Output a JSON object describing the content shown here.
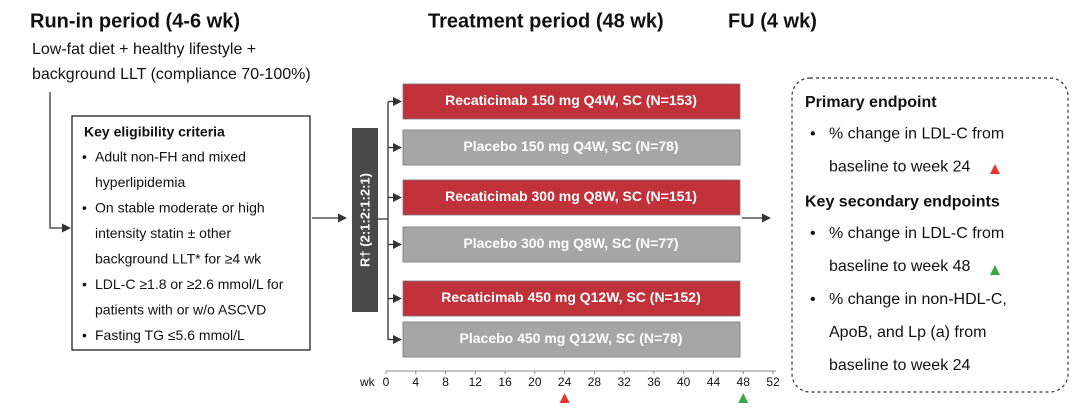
{
  "run_in": {
    "title": "Run-in period (4-6 wk)",
    "description": [
      "Low-fat diet + healthy lifestyle +",
      "background LLT (compliance 70-100%)"
    ]
  },
  "treatment": {
    "title": "Treatment period (48 wk)"
  },
  "follow_up": {
    "title": "FU (4 wk)"
  },
  "eligibility": {
    "title": "Key eligibility criteria",
    "items": [
      [
        "Adult non-FH and mixed",
        "hyperlipidemia"
      ],
      [
        "On stable moderate or high",
        "intensity statin ± other",
        "background LLT* for ≥4 wk"
      ],
      [
        "LDL-C ≥1.8 or ≥2.6 mmol/L for",
        "patients with or w/o ASCVD"
      ],
      [
        "Fasting TG ≤5.6 mmol/L"
      ]
    ]
  },
  "randomization": {
    "label": "R† (2:1:2:1:2:1)"
  },
  "arms": [
    {
      "label": "Recaticimab 150 mg Q4W, SC (N=153)",
      "color": "#c0313a"
    },
    {
      "label": "Placebo 150 mg Q4W, SC (N=78)",
      "color": "#a6a6a6"
    },
    {
      "label": "Recaticimab 300 mg Q8W, SC (N=151)",
      "color": "#c0313a"
    },
    {
      "label": "Placebo 300 mg Q8W, SC (N=77)",
      "color": "#a6a6a6"
    },
    {
      "label": "Recaticimab 450 mg Q12W, SC (N=152)",
      "color": "#c0313a"
    },
    {
      "label": "Placebo 450 mg Q12W, SC (N=78)",
      "color": "#a6a6a6"
    }
  ],
  "timeline": {
    "unit": "wk",
    "ticks": [
      0,
      4,
      8,
      12,
      16,
      20,
      24,
      28,
      32,
      36,
      40,
      44,
      48,
      52
    ],
    "markers": [
      {
        "week": 24,
        "color": "#e8352e"
      },
      {
        "week": 48,
        "color": "#3aa845"
      }
    ]
  },
  "endpoints": [
    {
      "title": "Primary endpoint",
      "items": [
        [
          "% change in LDL-C from",
          "baseline to week 24"
        ]
      ]
    },
    {
      "title": "Key secondary endpoints",
      "items": [
        [
          "% change in LDL-C from",
          "baseline to week 48"
        ],
        [
          "% change in non-HDL-C,",
          "ApoB, and Lp (a) from",
          "baseline to week 24"
        ]
      ]
    }
  ]
}
